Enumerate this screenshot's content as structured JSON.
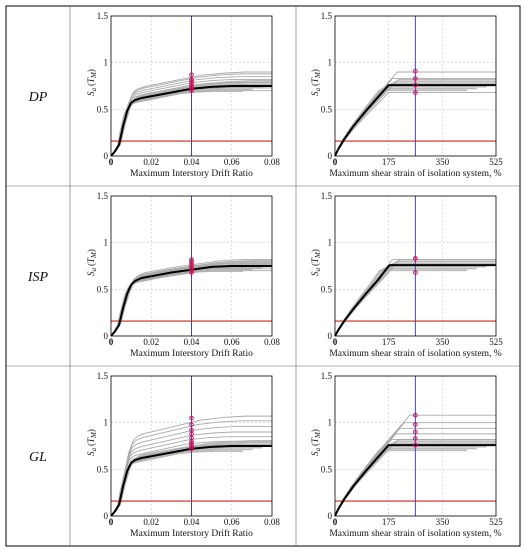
{
  "rows": [
    {
      "label": "DP"
    },
    {
      "label": "ISP"
    },
    {
      "label": "GL"
    }
  ],
  "y_axis_label": {
    "main": "S",
    "sub": "a",
    "paren_open": "(",
    "var": "T",
    "var_sub": "M",
    "paren_close": ")"
  },
  "colors": {
    "grey_curves": "#aaaaaa",
    "median_curve": "#000000",
    "vertical_line": "#4b3fb0",
    "horizontal_line": "#d62020",
    "markers": "#d01050"
  },
  "chart_data": [
    {
      "type": "line",
      "row": "DP",
      "panel": "left",
      "xlabel": "Maximum Interstory Drift Ratio",
      "xlim": [
        0,
        0.08
      ],
      "ylim": [
        0,
        1.5
      ],
      "xticks": [
        0,
        0.02,
        0.04,
        0.06,
        0.08
      ],
      "xtick_labels": [
        "0",
        "0.02",
        "0.04",
        "0.06",
        "0.08"
      ],
      "yticks": [
        0,
        0.5,
        1,
        1.5
      ],
      "ytick_labels": [
        "0",
        "0.5",
        "1",
        "1.5"
      ],
      "median": {
        "x": [
          0,
          0.002,
          0.004,
          0.006,
          0.008,
          0.01,
          0.012,
          0.015,
          0.02,
          0.03,
          0.04,
          0.05,
          0.06,
          0.08
        ],
        "y": [
          0,
          0.05,
          0.12,
          0.32,
          0.48,
          0.57,
          0.6,
          0.62,
          0.64,
          0.68,
          0.72,
          0.74,
          0.75,
          0.75
        ]
      },
      "grey_end_y": [
        0.7,
        0.73,
        0.76,
        0.79,
        0.82,
        0.85,
        0.88,
        0.9
      ],
      "vline_x": 0.04,
      "hline_y": 0.16,
      "marker_x": 0.04,
      "marker_y": [
        0.7,
        0.72,
        0.74,
        0.76,
        0.78,
        0.8,
        0.82,
        0.87
      ]
    },
    {
      "type": "line",
      "row": "DP",
      "panel": "right",
      "xlabel": "Maximum shear strain of isolation system, %",
      "xlim": [
        0,
        525
      ],
      "ylim": [
        0,
        1.5
      ],
      "xticks": [
        0,
        175,
        350,
        525
      ],
      "xtick_labels": [
        "0",
        "175",
        "350",
        "525"
      ],
      "yticks": [
        0,
        0.5,
        1,
        1.5
      ],
      "ytick_labels": [
        "0",
        "0.5",
        "1",
        "1.5"
      ],
      "median": {
        "x": [
          0,
          10,
          30,
          60,
          100,
          140,
          175,
          180,
          525
        ],
        "y": [
          0,
          0.07,
          0.18,
          0.32,
          0.48,
          0.63,
          0.76,
          0.76,
          0.76
        ]
      },
      "grey_end_y": [
        0.68,
        0.76,
        0.83,
        0.9
      ],
      "vline_x": 262,
      "hline_y": 0.16,
      "marker_x": 262,
      "marker_y": [
        0.68,
        0.76,
        0.83,
        0.91
      ]
    },
    {
      "type": "line",
      "row": "ISP",
      "panel": "left",
      "xlabel": "Maximum Interstory Drift Ratio",
      "xlim": [
        0,
        0.08
      ],
      "ylim": [
        0,
        1.5
      ],
      "xticks": [
        0,
        0.02,
        0.04,
        0.06,
        0.08
      ],
      "xtick_labels": [
        "0",
        "0.02",
        "0.04",
        "0.06",
        "0.08"
      ],
      "yticks": [
        0,
        0.5,
        1,
        1.5
      ],
      "ytick_labels": [
        "0",
        "0.5",
        "1",
        "1.5"
      ],
      "median": {
        "x": [
          0,
          0.002,
          0.004,
          0.006,
          0.008,
          0.01,
          0.012,
          0.015,
          0.02,
          0.03,
          0.04,
          0.05,
          0.06,
          0.08
        ],
        "y": [
          0,
          0.05,
          0.12,
          0.3,
          0.45,
          0.55,
          0.59,
          0.62,
          0.64,
          0.68,
          0.71,
          0.74,
          0.75,
          0.75
        ]
      },
      "grey_end_y": [
        0.7,
        0.72,
        0.74,
        0.76,
        0.78,
        0.8,
        0.82
      ],
      "vline_x": 0.04,
      "hline_y": 0.16,
      "marker_x": 0.04,
      "marker_y": [
        0.68,
        0.7,
        0.72,
        0.74,
        0.76,
        0.78,
        0.8,
        0.82
      ]
    },
    {
      "type": "line",
      "row": "ISP",
      "panel": "right",
      "xlabel": "Maximum shear strain of isolation system, %",
      "xlim": [
        0,
        525
      ],
      "ylim": [
        0,
        1.5
      ],
      "xticks": [
        0,
        175,
        350,
        525
      ],
      "xtick_labels": [
        "0",
        "175",
        "350",
        "525"
      ],
      "yticks": [
        0,
        0.5,
        1,
        1.5
      ],
      "ytick_labels": [
        "0",
        "0.5",
        "1",
        "1.5"
      ],
      "median": {
        "x": [
          0,
          10,
          30,
          60,
          100,
          140,
          175,
          180,
          525
        ],
        "y": [
          0,
          0.06,
          0.16,
          0.29,
          0.45,
          0.6,
          0.75,
          0.76,
          0.76
        ]
      },
      "grey_end_y": [
        0.82
      ],
      "vline_x": 262,
      "hline_y": 0.16,
      "marker_x": 262,
      "marker_y": [
        0.68,
        0.83,
        0.83
      ]
    },
    {
      "type": "line",
      "row": "GL",
      "panel": "left",
      "xlabel": "Maximum Interstory Drift Ratio",
      "xlim": [
        0,
        0.08
      ],
      "ylim": [
        0,
        1.5
      ],
      "xticks": [
        0,
        0.02,
        0.04,
        0.06,
        0.08
      ],
      "xtick_labels": [
        "0",
        "0.02",
        "0.04",
        "0.06",
        "0.08"
      ],
      "yticks": [
        0,
        0.5,
        1,
        1.5
      ],
      "ytick_labels": [
        "0",
        "0.5",
        "1",
        "1.5"
      ],
      "median": {
        "x": [
          0,
          0.002,
          0.004,
          0.006,
          0.008,
          0.01,
          0.012,
          0.015,
          0.02,
          0.03,
          0.04,
          0.05,
          0.06,
          0.08
        ],
        "y": [
          0,
          0.05,
          0.12,
          0.32,
          0.48,
          0.57,
          0.6,
          0.62,
          0.64,
          0.68,
          0.72,
          0.74,
          0.75,
          0.75
        ]
      },
      "grey_end_y": [
        0.76,
        0.8,
        0.85,
        0.9,
        0.96,
        1.02,
        1.07
      ],
      "vline_x": 0.04,
      "hline_y": 0.16,
      "marker_x": 0.04,
      "marker_y": [
        0.72,
        0.74,
        0.76,
        0.78,
        0.8,
        0.84,
        0.88,
        0.92,
        0.98,
        1.05
      ]
    },
    {
      "type": "line",
      "row": "GL",
      "panel": "right",
      "xlabel": "Maximum shear strain of isolation system, %",
      "xlim": [
        0,
        525
      ],
      "ylim": [
        0,
        1.5
      ],
      "xticks": [
        0,
        175,
        350,
        525
      ],
      "xtick_labels": [
        "0",
        "175",
        "350",
        "525"
      ],
      "yticks": [
        0,
        0.5,
        1,
        1.5
      ],
      "ytick_labels": [
        "0",
        "0.5",
        "1",
        "1.5"
      ],
      "median": {
        "x": [
          0,
          10,
          30,
          60,
          100,
          140,
          175,
          180,
          525
        ],
        "y": [
          0,
          0.07,
          0.18,
          0.32,
          0.48,
          0.63,
          0.76,
          0.76,
          0.76
        ]
      },
      "grey_end_y": [
        0.76,
        0.82,
        0.88,
        0.94,
        1.0,
        1.08
      ],
      "vline_x": 262,
      "hline_y": 0.16,
      "marker_x": 262,
      "marker_y": [
        0.76,
        0.83,
        0.9,
        0.98,
        1.08
      ]
    }
  ]
}
